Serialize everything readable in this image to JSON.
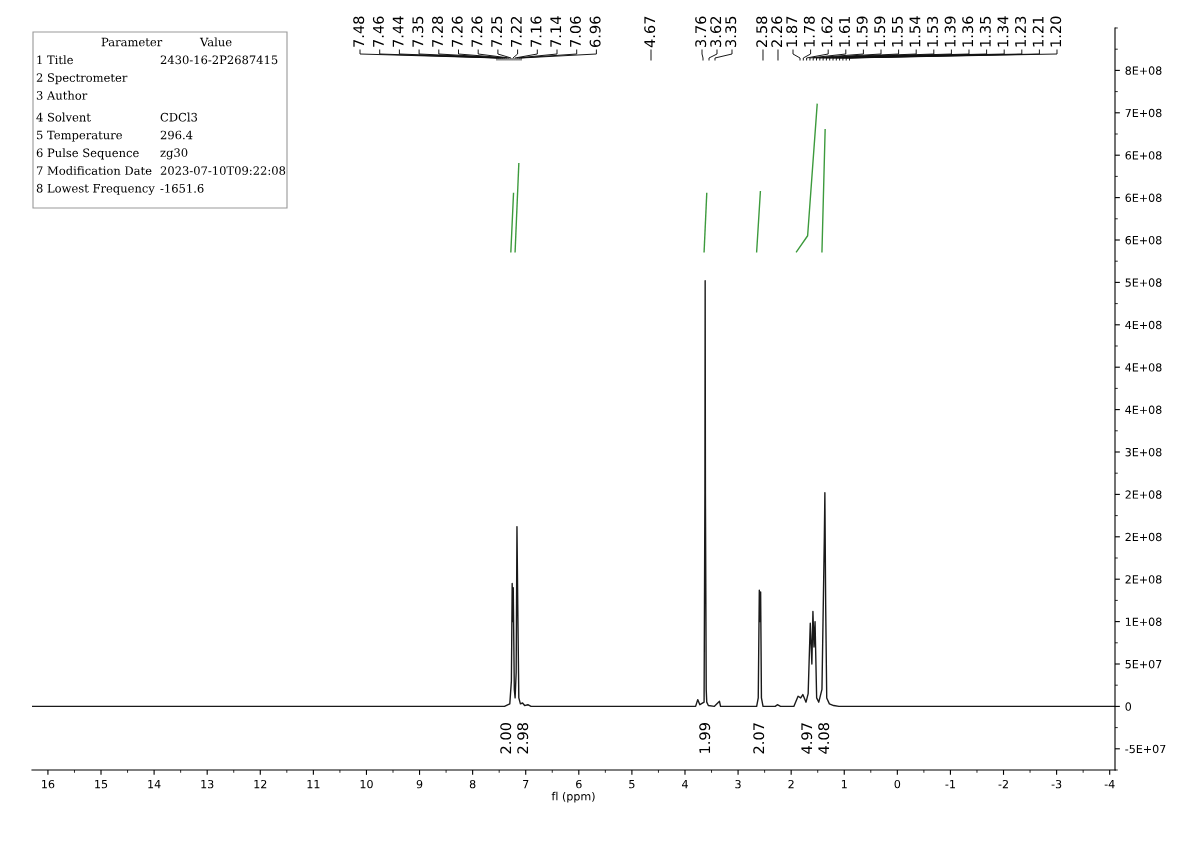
{
  "chart_data": {
    "type": "line",
    "xlabel": "fl (ppm)",
    "xlim": [
      16.3,
      -4.1
    ],
    "xticks": [
      16,
      15,
      14,
      13,
      12,
      11,
      10,
      9,
      8,
      7,
      6,
      5,
      4,
      3,
      2,
      1,
      0,
      -1,
      -2,
      -3,
      -4
    ],
    "ylim": [
      -75000000,
      800000000
    ],
    "yticks": [
      {
        "value": -50000000,
        "label": "-5E+07"
      },
      0,
      {
        "value": 50000000,
        "label": "5E+07"
      },
      {
        "value": 100000000,
        "label": "1E+08"
      },
      {
        "value": 150000000,
        "label": "2E+08"
      },
      {
        "value": 200000000,
        "label": "2E+08"
      },
      {
        "value": 250000000,
        "label": "2E+08"
      },
      {
        "value": 300000000,
        "label": "3E+08"
      },
      {
        "value": 350000000,
        "label": "4E+08"
      },
      {
        "value": 400000000,
        "label": "4E+08"
      },
      {
        "value": 450000000,
        "label": "4E+08"
      },
      {
        "value": 500000000,
        "label": "5E+08"
      },
      {
        "value": 550000000,
        "label": "6E+08"
      },
      {
        "value": 600000000,
        "label": "6E+08"
      },
      {
        "value": 650000000,
        "label": "6E+08"
      },
      {
        "value": 700000000,
        "label": "7E+08"
      },
      {
        "value": 750000000,
        "label": "8E+08"
      }
    ],
    "grid": false,
    "legend": false,
    "marker": "none",
    "line_style": "solid",
    "series": [
      {
        "color": "#1a1a1a",
        "x": [
          16.3,
          7.4,
          7.3,
          7.27,
          7.255,
          7.245,
          7.235,
          7.215,
          7.2,
          7.18,
          7.165,
          7.15,
          7.13,
          7.1,
          7.06,
          7.02,
          6.96,
          6.9,
          3.8,
          3.76,
          3.72,
          3.64,
          3.625,
          3.62,
          3.615,
          3.6,
          3.59,
          3.56,
          3.45,
          3.35,
          3.33,
          2.65,
          2.62,
          2.6,
          2.585,
          2.575,
          2.56,
          2.53,
          2.3,
          2.26,
          2.2,
          1.95,
          1.87,
          1.82,
          1.78,
          1.72,
          1.68,
          1.64,
          1.61,
          1.59,
          1.57,
          1.55,
          1.52,
          1.48,
          1.42,
          1.375,
          1.365,
          1.35,
          1.33,
          1.28,
          1.2,
          1.1,
          -4.1
        ],
        "values": [
          0,
          0,
          3000000,
          30000000,
          145000000,
          100000000,
          140000000,
          20000000,
          10000000,
          40000000,
          212000000,
          120000000,
          10000000,
          3000000,
          4000000,
          1000000,
          2000000,
          0,
          0,
          8000000,
          2000000,
          5000000,
          252000000,
          502000000,
          252000000,
          20000000,
          5000000,
          1000000,
          0,
          6000000,
          0,
          0,
          10000000,
          137000000,
          100000000,
          135000000,
          10000000,
          0,
          0,
          2000000,
          0,
          0,
          12000000,
          10000000,
          14000000,
          5000000,
          15000000,
          98000000,
          50000000,
          112000000,
          70000000,
          100000000,
          10000000,
          5000000,
          20000000,
          200000000,
          252000000,
          120000000,
          10000000,
          3000000,
          1000000,
          0,
          0
        ]
      },
      {
        "color": "#3c9a3c",
        "x": [
          7.28,
          7.23
        ],
        "values": [
          536000000,
          605000000
        ]
      },
      {
        "color": "#3c9a3c",
        "x": [
          7.2,
          7.13
        ],
        "values": [
          536000000,
          640000000
        ]
      },
      {
        "color": "#3c9a3c",
        "x": [
          3.64,
          3.59
        ],
        "values": [
          536000000,
          605000000
        ]
      },
      {
        "color": "#3c9a3c",
        "x": [
          2.65,
          2.58
        ],
        "values": [
          536000000,
          607000000
        ]
      },
      {
        "color": "#3c9a3c",
        "x": [
          1.9,
          1.69,
          1.51
        ],
        "values": [
          536000000,
          555000000,
          710000000
        ]
      },
      {
        "color": "#3c9a3c",
        "x": [
          1.42,
          1.36
        ],
        "values": [
          536000000,
          680000000
        ]
      }
    ],
    "annotations": [
      "Parameter",
      "Value",
      "1 Title",
      "2430-16-2P2687415",
      "2 Spectrometer",
      "3 Author",
      "4 Solvent",
      "CDCl3",
      "5 Temperature",
      "296.4",
      "6 Pulse Sequence",
      "zg30",
      "7 Modification Date",
      "2023-07-10T09:22:08",
      "8 Lowest Frequency",
      "-1651.6",
      "7.48",
      "7.46",
      "7.44",
      "7.35",
      "7.28",
      "7.26",
      "7.26",
      "7.25",
      "7.22",
      "7.16",
      "7.14",
      "7.06",
      "6.96",
      "4.67",
      "3.76",
      "3.62",
      "3.35",
      "2.58",
      "2.26",
      "1.87",
      "1.78",
      "1.62",
      "1.61",
      "1.59",
      "1.59",
      "1.55",
      "1.54",
      "1.53",
      "1.39",
      "1.36",
      "1.35",
      "1.34",
      "1.23",
      "1.21",
      "1.20",
      "2.00",
      "2.98",
      "1.99",
      "2.07",
      "4.97",
      "4.08"
    ]
  }
}
